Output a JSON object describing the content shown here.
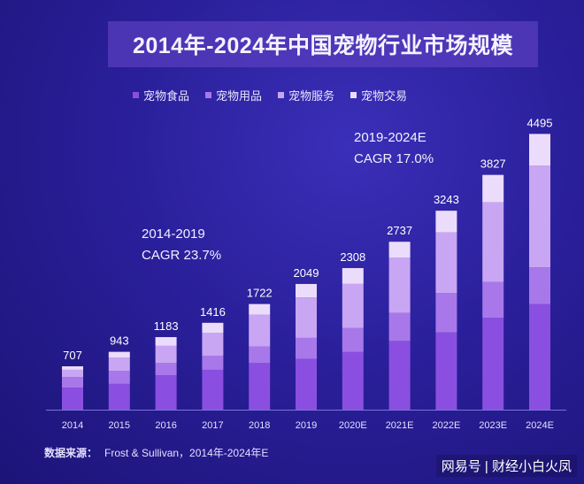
{
  "title": "2014年-2024年中国宠物行业市场规模",
  "legend": [
    {
      "label": "宠物食品",
      "color": "#8a4fe0"
    },
    {
      "label": "宠物用品",
      "color": "#a878ea"
    },
    {
      "label": "宠物服务",
      "color": "#c9a6f3"
    },
    {
      "label": "宠物交易",
      "color": "#ecdcfb"
    }
  ],
  "annotations": {
    "cagr1_period": "2014-2019",
    "cagr1_value": "CAGR 23.7%",
    "cagr2_period": "2019-2024E",
    "cagr2_value": "CAGR 17.0%"
  },
  "source": {
    "label": "数据来源：",
    "text": "Frost & Sullivan，2014年-2024年E"
  },
  "watermark": "网易号 | 财经小白火凤",
  "chart_data": {
    "type": "bar",
    "stacked": true,
    "categories": [
      "2014",
      "2015",
      "2016",
      "2017",
      "2018",
      "2019",
      "2020E",
      "2021E",
      "2022E",
      "2023E",
      "2024E"
    ],
    "totals": [
      707,
      943,
      1183,
      1416,
      1722,
      2049,
      2308,
      2737,
      3243,
      3827,
      4495
    ],
    "series": [
      {
        "name": "宠物食品",
        "color": "#8a4fe0",
        "values": [
          360,
          420,
          560,
          650,
          760,
          830,
          940,
          1120,
          1260,
          1500,
          1720
        ]
      },
      {
        "name": "宠物用品",
        "color": "#a878ea",
        "values": [
          170,
          210,
          200,
          230,
          270,
          340,
          390,
          460,
          640,
          580,
          600
        ]
      },
      {
        "name": "宠物服务",
        "color": "#c9a6f3",
        "values": [
          120,
          220,
          280,
          370,
          520,
          660,
          720,
          900,
          990,
          1300,
          1660
        ]
      },
      {
        "name": "宠物交易",
        "color": "#ecdcfb",
        "values": [
          57,
          93,
          143,
          166,
          172,
          219,
          258,
          257,
          353,
          447,
          515
        ]
      }
    ],
    "ylim": [
      0,
      4500
    ],
    "grid": false,
    "legend_position": "top-left"
  }
}
